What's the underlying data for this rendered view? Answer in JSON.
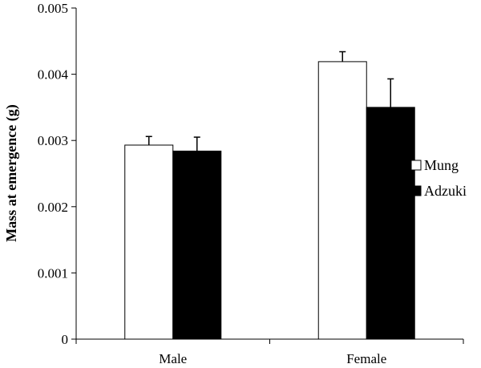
{
  "chart_data": {
    "type": "bar",
    "title": "",
    "xlabel": "",
    "ylabel": "Mass at emergence (g)",
    "ylim": [
      0,
      0.005
    ],
    "yticks": [
      "0",
      "0.001",
      "0.002",
      "0.003",
      "0.004",
      "0.005"
    ],
    "categories": [
      "Male",
      "Female"
    ],
    "series": [
      {
        "name": "Mung",
        "values": [
          0.00293,
          0.00419
        ],
        "errors": [
          0.00013,
          0.00015
        ],
        "color": "#ffffff",
        "stroke": "#000000"
      },
      {
        "name": "Adzuki",
        "values": [
          0.00284,
          0.0035
        ],
        "errors": [
          0.00021,
          0.00043
        ],
        "color": "#000000",
        "stroke": "#000000"
      }
    ],
    "grid": false,
    "legend_position": "right"
  }
}
